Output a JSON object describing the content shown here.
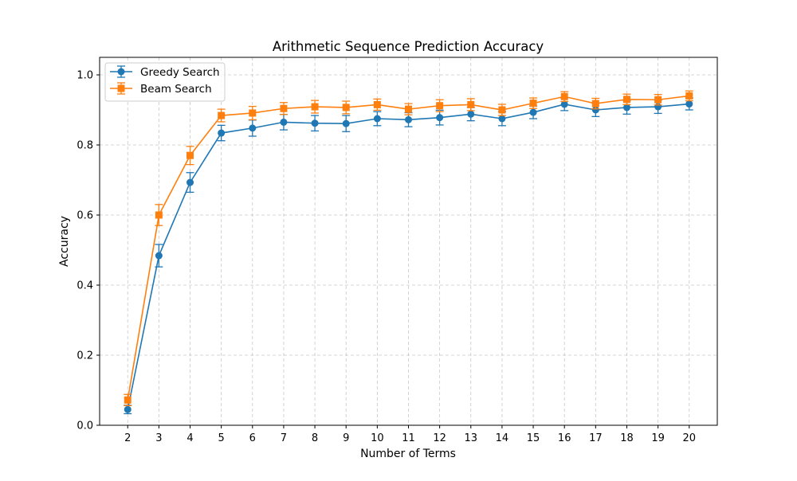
{
  "chart_data": {
    "type": "line",
    "title": "Arithmetic Sequence Prediction Accuracy",
    "xlabel": "Number of Terms",
    "ylabel": "Accuracy",
    "xlim": [
      1.1,
      20.9
    ],
    "ylim": [
      0.0,
      1.05
    ],
    "x_ticks": [
      2,
      3,
      4,
      5,
      6,
      7,
      8,
      9,
      10,
      11,
      12,
      13,
      14,
      15,
      16,
      17,
      18,
      19,
      20
    ],
    "y_ticks": [
      0.0,
      0.2,
      0.4,
      0.6,
      0.8,
      1.0
    ],
    "y_tick_labels": [
      "0.0",
      "0.2",
      "0.4",
      "0.6",
      "0.8",
      "1.0"
    ],
    "grid": true,
    "legend_position": "top-left",
    "x": [
      2,
      3,
      4,
      5,
      6,
      7,
      8,
      9,
      10,
      11,
      12,
      13,
      14,
      15,
      16,
      17,
      18,
      19,
      20
    ],
    "series": [
      {
        "name": "Greedy Search",
        "color": "#1f77b4",
        "marker": "circle",
        "values": [
          0.045,
          0.484,
          0.693,
          0.834,
          0.848,
          0.865,
          0.862,
          0.861,
          0.875,
          0.872,
          0.878,
          0.888,
          0.875,
          0.893,
          0.916,
          0.9,
          0.907,
          0.909,
          0.917
        ],
        "errors": [
          0.012,
          0.032,
          0.028,
          0.022,
          0.023,
          0.022,
          0.022,
          0.023,
          0.02,
          0.02,
          0.021,
          0.019,
          0.02,
          0.018,
          0.018,
          0.019,
          0.019,
          0.019,
          0.017
        ]
      },
      {
        "name": "Beam Search",
        "color": "#ff7f0e",
        "marker": "square",
        "values": [
          0.072,
          0.6,
          0.77,
          0.884,
          0.891,
          0.904,
          0.909,
          0.907,
          0.915,
          0.902,
          0.912,
          0.915,
          0.9,
          0.919,
          0.938,
          0.918,
          0.93,
          0.929,
          0.94
        ],
        "errors": [
          0.016,
          0.03,
          0.026,
          0.018,
          0.019,
          0.017,
          0.018,
          0.018,
          0.016,
          0.016,
          0.017,
          0.017,
          0.016,
          0.015,
          0.014,
          0.015,
          0.015,
          0.015,
          0.014
        ]
      }
    ]
  }
}
